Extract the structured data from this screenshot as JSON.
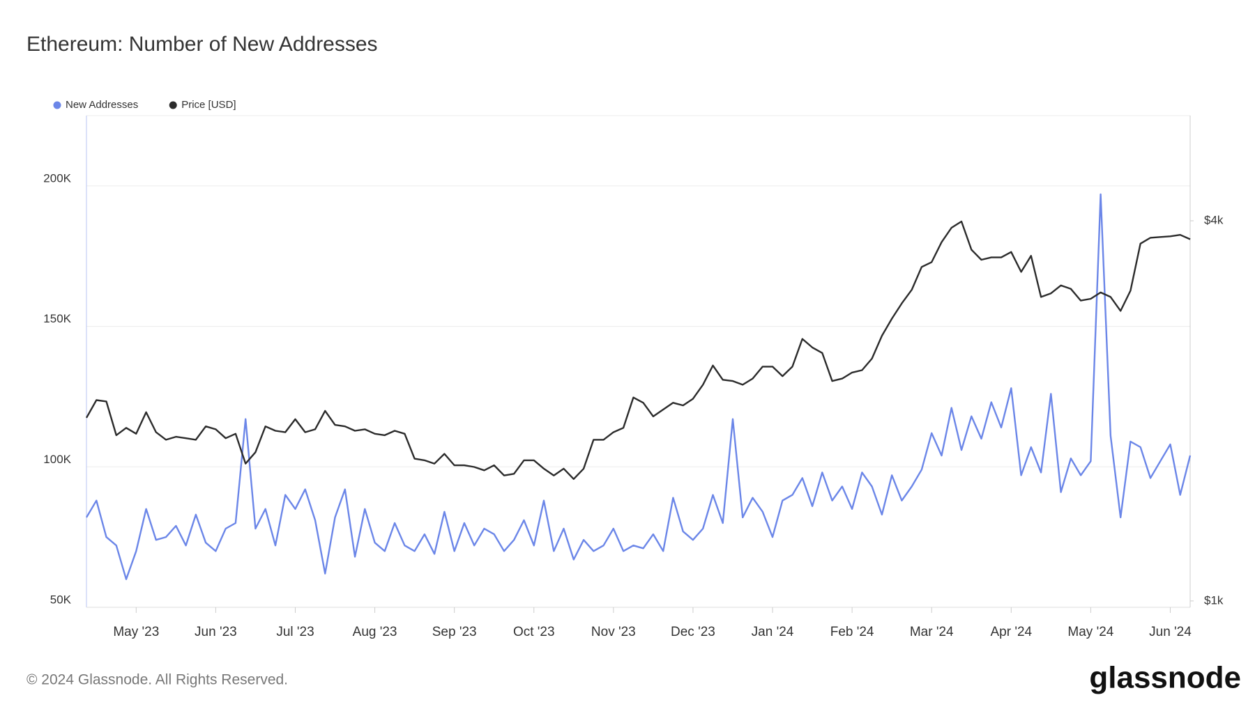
{
  "chart_data": {
    "type": "line",
    "title": "Ethereum: Number of New Addresses",
    "categories": [
      null,
      null,
      null,
      null,
      null,
      "May '23",
      null,
      null,
      null,
      null,
      null,
      null,
      null,
      "Jun '23",
      null,
      null,
      null,
      null,
      null,
      null,
      null,
      "Jul '23",
      null,
      null,
      null,
      null,
      null,
      null,
      null,
      "Aug '23",
      null,
      null,
      null,
      null,
      null,
      null,
      null,
      "Sep '23",
      null,
      null,
      null,
      null,
      null,
      null,
      null,
      "Oct '23",
      null,
      null,
      null,
      null,
      null,
      null,
      null,
      "Nov '23",
      null,
      null,
      null,
      null,
      null,
      null,
      null,
      "Dec '23",
      null,
      null,
      null,
      null,
      null,
      null,
      null,
      "Jan '24",
      null,
      null,
      null,
      null,
      null,
      null,
      null,
      "Feb '24",
      null,
      null,
      null,
      null,
      null,
      null,
      null,
      "Mar '24",
      null,
      null,
      null,
      null,
      null,
      null,
      null,
      "Apr '24",
      null,
      null,
      null,
      null,
      null,
      null,
      null,
      "May '24",
      null,
      null,
      null,
      null,
      null,
      null,
      null,
      "Jun '24",
      null,
      null
    ],
    "series": [
      {
        "name": "New Addresses",
        "color": "#6b86e8",
        "axis": "y",
        "values": [
          82000,
          88000,
          75000,
          72000,
          60000,
          70000,
          85000,
          74000,
          75000,
          79000,
          72000,
          83000,
          73000,
          70000,
          78000,
          80000,
          117000,
          78000,
          85000,
          72000,
          90000,
          85000,
          92000,
          81000,
          62000,
          82000,
          92000,
          68000,
          85000,
          73000,
          70000,
          80000,
          72000,
          70000,
          76000,
          69000,
          84000,
          70000,
          80000,
          72000,
          78000,
          76000,
          70000,
          74000,
          81000,
          72000,
          88000,
          70000,
          78000,
          67000,
          74000,
          70000,
          72000,
          78000,
          70000,
          72000,
          71000,
          76000,
          70000,
          89000,
          77000,
          74000,
          78000,
          90000,
          80000,
          117000,
          82000,
          89000,
          84000,
          75000,
          88000,
          90000,
          96000,
          86000,
          98000,
          88000,
          93000,
          85000,
          98000,
          93000,
          83000,
          97000,
          88000,
          93000,
          99000,
          112000,
          104000,
          121000,
          106000,
          118000,
          110000,
          123000,
          114000,
          128000,
          97000,
          107000,
          98000,
          126000,
          91000,
          103000,
          97000,
          102000,
          197000,
          111000,
          82000,
          109000,
          107000,
          96000,
          102000,
          108000,
          90000,
          104000
        ]
      },
      {
        "name": "Price [USD]",
        "color": "#2b2b2b",
        "axis": "y2",
        "values": [
          1950,
          2080,
          2070,
          1830,
          1880,
          1840,
          1990,
          1850,
          1800,
          1820,
          1810,
          1800,
          1890,
          1870,
          1810,
          1840,
          1650,
          1720,
          1890,
          1860,
          1850,
          1940,
          1850,
          1870,
          2000,
          1900,
          1890,
          1860,
          1870,
          1840,
          1830,
          1860,
          1840,
          1680,
          1670,
          1650,
          1710,
          1640,
          1640,
          1630,
          1610,
          1640,
          1580,
          1590,
          1670,
          1670,
          1620,
          1580,
          1620,
          1560,
          1620,
          1800,
          1800,
          1850,
          1880,
          2100,
          2060,
          1960,
          2010,
          2060,
          2040,
          2090,
          2200,
          2360,
          2240,
          2230,
          2200,
          2250,
          2350,
          2350,
          2270,
          2350,
          2600,
          2520,
          2470,
          2230,
          2250,
          2300,
          2320,
          2420,
          2630,
          2800,
          2960,
          3110,
          3380,
          3440,
          3700,
          3900,
          3990,
          3600,
          3470,
          3500,
          3500,
          3570,
          3320,
          3520,
          3030,
          3070,
          3160,
          3120,
          2990,
          3010,
          3080,
          3030,
          2880,
          3100,
          3680,
          3760,
          3770,
          3780,
          3800,
          3740
        ]
      }
    ],
    "ylim": [
      50000,
      225000
    ],
    "yticks": [
      {
        "value": 50000,
        "label": "50K"
      },
      {
        "value": 100000,
        "label": "100K"
      },
      {
        "value": 150000,
        "label": "150K"
      },
      {
        "value": 200000,
        "label": "200K"
      }
    ],
    "y2lim": [
      977,
      5870
    ],
    "y2ticks": [
      {
        "value": 1000,
        "label": "$1k"
      },
      {
        "value": 4000,
        "label": "$4k"
      }
    ],
    "y2log": true,
    "grid": true,
    "legend": "top-left"
  },
  "footer": "© 2024 Glassnode. All Rights Reserved.",
  "logo": "glassnode"
}
